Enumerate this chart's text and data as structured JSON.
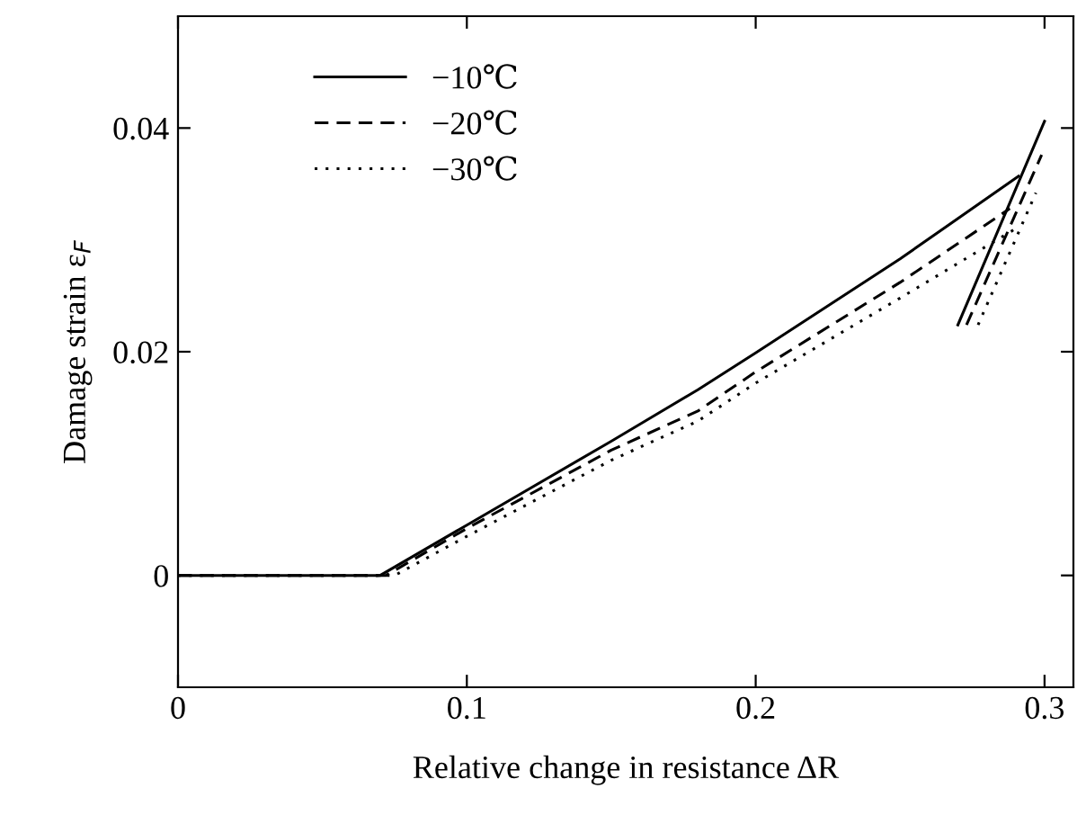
{
  "chart_data": {
    "type": "line",
    "xlabel": "Relative change in resistance ΔR",
    "ylabel": "Damage strain ε$_{F}$",
    "xlim": [
      0,
      0.31
    ],
    "ylim": [
      -0.01,
      0.05
    ],
    "xticks": [
      0,
      0.1,
      0.2,
      0.3
    ],
    "yticks": [
      0,
      0.02,
      0.04
    ],
    "grid": false,
    "legend": "top left",
    "marker": "none",
    "series": [
      {
        "name": "−10℃",
        "color": "#000000",
        "line_style": "solid",
        "x": [
          0,
          0.07,
          0.1,
          0.15,
          0.18,
          0.2,
          0.25,
          0.291
        ],
        "values": [
          0,
          0,
          0.0045,
          0.012,
          0.0166,
          0.0199,
          0.0283,
          0.0357
        ]
      },
      {
        "name": "−20℃",
        "color": "#000000",
        "line_style": "dashed",
        "x": [
          0,
          0.072,
          0.1,
          0.15,
          0.18,
          0.2,
          0.25,
          0.288
        ],
        "values": [
          0,
          0,
          0.0042,
          0.0112,
          0.0147,
          0.0182,
          0.0262,
          0.0328
        ]
      },
      {
        "name": "−30℃",
        "color": "#000000",
        "line_style": "dotted",
        "x": [
          0,
          0.075,
          0.1,
          0.15,
          0.18,
          0.2,
          0.25,
          0.29
        ],
        "values": [
          0,
          0,
          0.0035,
          0.0103,
          0.0138,
          0.0172,
          0.0248,
          0.031
        ]
      },
      {
        "color": "#000000",
        "line_style": "solid",
        "x": [
          0.27,
          0.3
        ],
        "values": [
          0.0224,
          0.0406
        ]
      },
      {
        "color": "#000000",
        "line_style": "dashed",
        "x": [
          0.273,
          0.299
        ],
        "values": [
          0.0224,
          0.0376
        ]
      },
      {
        "color": "#000000",
        "line_style": "dotted",
        "x": [
          0.277,
          0.297
        ],
        "values": [
          0.0224,
          0.0342
        ]
      }
    ]
  }
}
